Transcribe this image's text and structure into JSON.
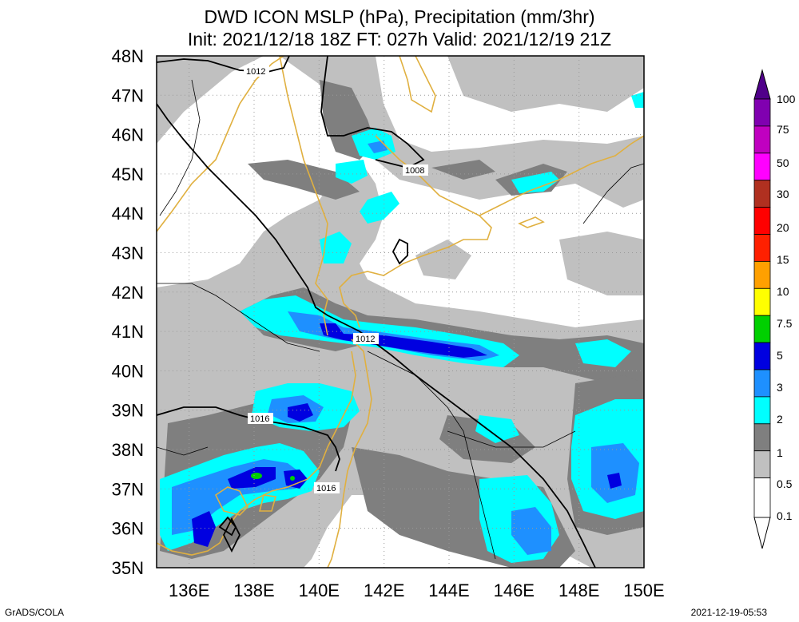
{
  "title_line1": "DWD ICON MSLP (hPa), Precipitation (mm/3hr)",
  "title_line2": "Init: 2021/12/18 18Z  FT: 027h  Valid: 2021/12/19 21Z",
  "footer_left": "GrADS/COLA",
  "footer_right": "2021-12-19-05:53",
  "map": {
    "lon_range": [
      135,
      150
    ],
    "lat_range": [
      35,
      48
    ],
    "grid": "dotted",
    "lon_ticks": [
      "136E",
      "138E",
      "140E",
      "142E",
      "144E",
      "146E",
      "148E",
      "150E"
    ],
    "lat_ticks": [
      "35N",
      "36N",
      "37N",
      "38N",
      "39N",
      "40N",
      "41N",
      "42N",
      "43N",
      "44N",
      "45N",
      "46N",
      "47N",
      "48N"
    ],
    "isobar_labels": [
      {
        "text": "1012",
        "lon": 138.1,
        "lat": 47.5
      },
      {
        "text": "1008",
        "lon": 143.0,
        "lat": 45.0
      },
      {
        "text": "1012",
        "lon": 141.4,
        "lat": 40.8
      },
      {
        "text": "1016",
        "lon": 138.2,
        "lat": 38.8
      },
      {
        "text": "1016",
        "lon": 140.2,
        "lat": 36.9
      }
    ]
  },
  "colorbar": {
    "levels": [
      {
        "label": "0.1",
        "color": "#c0c0c0"
      },
      {
        "label": "0.5",
        "color": "#7f7f7f"
      },
      {
        "label": "1",
        "color": "#00ffff"
      },
      {
        "label": "2",
        "color": "#1e90ff"
      },
      {
        "label": "3",
        "color": "#0000e0"
      },
      {
        "label": "5",
        "color": "#00d000"
      },
      {
        "label": "7.5",
        "color": "#ffff00"
      },
      {
        "label": "10",
        "color": "#ffa000"
      },
      {
        "label": "15",
        "color": "#ff2000"
      },
      {
        "label": "20",
        "color": "#ff0000"
      },
      {
        "label": "30",
        "color": "#b03020"
      },
      {
        "label": "50",
        "color": "#ff00ff"
      },
      {
        "label": "75",
        "color": "#c000c0"
      },
      {
        "label": "100",
        "color": "#8000b0"
      }
    ],
    "top_color": "#50008a"
  },
  "colors": {
    "coast": "#e0b040",
    "isobar": "#000000",
    "border": "#000000"
  }
}
